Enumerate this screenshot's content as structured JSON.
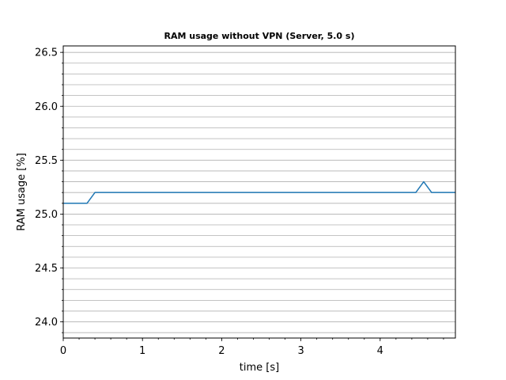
{
  "chart_data": {
    "type": "line",
    "title": "RAM usage without VPN (Server, 5.0 s)",
    "xlabel": "time [s]",
    "ylabel": "RAM usage [%]",
    "xlim": [
      0,
      4.95
    ],
    "ylim": [
      23.85,
      26.56
    ],
    "x_ticks": [
      0,
      1,
      2,
      3,
      4
    ],
    "x_tick_labels": [
      "0",
      "1",
      "2",
      "3",
      "4"
    ],
    "y_ticks": [
      24.0,
      24.5,
      25.0,
      25.5,
      26.0,
      26.5
    ],
    "y_tick_labels": [
      "24.0",
      "24.5",
      "25.0",
      "25.5",
      "26.0",
      "26.5"
    ],
    "y_minor_step": 0.1,
    "x_minor_step": 0.2,
    "grid": "horizontal",
    "color": "#1f77b4",
    "series": [
      {
        "x": [
          0,
          0.1,
          0.2,
          0.3,
          0.4,
          0.5,
          1.0,
          1.5,
          2.0,
          2.5,
          3.0,
          3.5,
          4.0,
          4.45,
          4.55,
          4.65,
          4.95
        ],
        "values": [
          25.1,
          25.1,
          25.1,
          25.1,
          25.2,
          25.2,
          25.2,
          25.2,
          25.2,
          25.2,
          25.2,
          25.2,
          25.2,
          25.2,
          25.3,
          25.2,
          25.2
        ]
      }
    ]
  }
}
